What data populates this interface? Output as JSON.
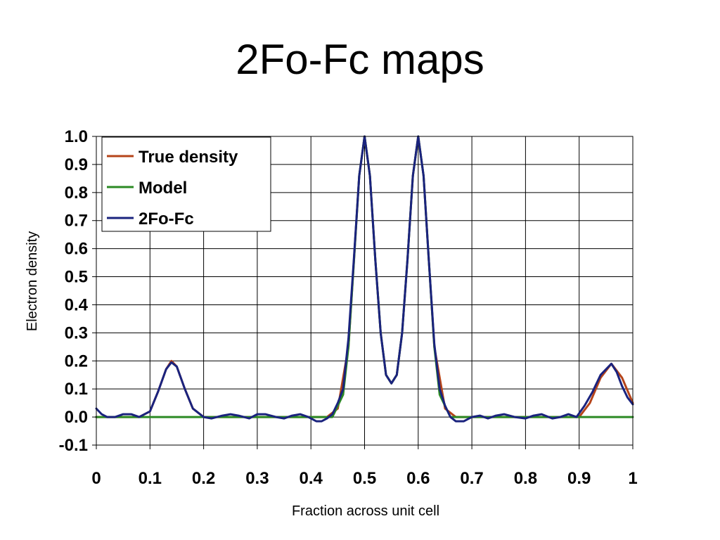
{
  "slide": {
    "title": "2Fo-Fc maps"
  },
  "chart_data": {
    "type": "line",
    "title": "",
    "xlabel": "Fraction across unit cell",
    "ylabel": "Electron density",
    "xlim": [
      0,
      1
    ],
    "ylim": [
      -0.1,
      1.0
    ],
    "xticks": [
      "0",
      "0.1",
      "0.2",
      "0.3",
      "0.4",
      "0.5",
      "0.6",
      "0.7",
      "0.8",
      "0.9",
      "1"
    ],
    "yticks": [
      "1.0",
      "0.9",
      "0.8",
      "0.7",
      "0.6",
      "0.5",
      "0.4",
      "0.3",
      "0.2",
      "0.1",
      "0.0",
      "-0.1"
    ],
    "grid": true,
    "legend": "top-left",
    "series": [
      {
        "name": "True density",
        "color": "#b5441a",
        "x": [
          0,
          0.05,
          0.08,
          0.1,
          0.115,
          0.13,
          0.14,
          0.15,
          0.165,
          0.18,
          0.2,
          0.25,
          0.3,
          0.35,
          0.4,
          0.43,
          0.45,
          0.47,
          0.48,
          0.49,
          0.5,
          0.51,
          0.52,
          0.53,
          0.54,
          0.55,
          0.56,
          0.57,
          0.58,
          0.59,
          0.6,
          0.61,
          0.62,
          0.63,
          0.65,
          0.67,
          0.7,
          0.75,
          0.8,
          0.85,
          0.9,
          0.92,
          0.94,
          0.96,
          0.98,
          1.0
        ],
        "values": [
          0.0,
          0.0,
          0.0,
          0.02,
          0.09,
          0.17,
          0.2,
          0.18,
          0.1,
          0.03,
          0.0,
          0.0,
          0.0,
          0.0,
          0.0,
          0.0,
          0.03,
          0.25,
          0.55,
          0.86,
          1.0,
          0.86,
          0.56,
          0.3,
          0.15,
          0.12,
          0.15,
          0.3,
          0.56,
          0.86,
          1.0,
          0.86,
          0.55,
          0.25,
          0.03,
          0.0,
          0.0,
          0.0,
          0.0,
          0.0,
          0.0,
          0.05,
          0.14,
          0.19,
          0.14,
          0.05
        ]
      },
      {
        "name": "Model",
        "color": "#2b8a24",
        "x": [
          0,
          0.44,
          0.46,
          0.47,
          0.48,
          0.49,
          0.5,
          0.51,
          0.52,
          0.53,
          0.54,
          0.55,
          0.56,
          0.57,
          0.58,
          0.59,
          0.6,
          0.61,
          0.62,
          0.63,
          0.64,
          0.66,
          1.0
        ],
        "values": [
          0.0,
          0.0,
          0.08,
          0.25,
          0.55,
          0.86,
          1.0,
          0.86,
          0.56,
          0.3,
          0.15,
          0.12,
          0.15,
          0.3,
          0.56,
          0.86,
          1.0,
          0.86,
          0.55,
          0.25,
          0.08,
          0.0,
          0.0
        ]
      },
      {
        "name": "2Fo-Fc",
        "color": "#1a237e",
        "x": [
          0,
          0.01,
          0.02,
          0.035,
          0.05,
          0.065,
          0.08,
          0.1,
          0.115,
          0.13,
          0.14,
          0.15,
          0.165,
          0.18,
          0.2,
          0.215,
          0.235,
          0.25,
          0.265,
          0.285,
          0.3,
          0.315,
          0.335,
          0.35,
          0.365,
          0.38,
          0.395,
          0.41,
          0.42,
          0.43,
          0.44,
          0.45,
          0.46,
          0.47,
          0.48,
          0.49,
          0.5,
          0.51,
          0.52,
          0.53,
          0.54,
          0.55,
          0.56,
          0.57,
          0.58,
          0.59,
          0.6,
          0.61,
          0.62,
          0.63,
          0.64,
          0.65,
          0.66,
          0.67,
          0.685,
          0.7,
          0.715,
          0.73,
          0.745,
          0.76,
          0.78,
          0.8,
          0.815,
          0.83,
          0.85,
          0.865,
          0.88,
          0.895,
          0.91,
          0.925,
          0.94,
          0.96,
          0.97,
          0.98,
          0.99,
          1.0
        ],
        "values": [
          0.03,
          0.01,
          0.0,
          0.0,
          0.01,
          0.01,
          0.0,
          0.02,
          0.09,
          0.17,
          0.195,
          0.18,
          0.1,
          0.03,
          0.0,
          -0.005,
          0.005,
          0.01,
          0.005,
          -0.005,
          0.01,
          0.01,
          0.0,
          -0.005,
          0.005,
          0.01,
          0.0,
          -0.015,
          -0.015,
          -0.005,
          0.01,
          0.05,
          0.1,
          0.28,
          0.56,
          0.86,
          1.0,
          0.86,
          0.56,
          0.3,
          0.15,
          0.12,
          0.15,
          0.3,
          0.56,
          0.86,
          1.0,
          0.86,
          0.55,
          0.26,
          0.1,
          0.04,
          0.0,
          -0.015,
          -0.015,
          0.0,
          0.005,
          -0.005,
          0.005,
          0.01,
          0.0,
          -0.005,
          0.005,
          0.01,
          -0.005,
          0.0,
          0.01,
          0.0,
          0.04,
          0.09,
          0.15,
          0.19,
          0.16,
          0.11,
          0.07,
          0.045
        ]
      }
    ]
  }
}
